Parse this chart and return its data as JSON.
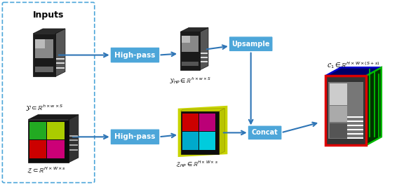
{
  "bg_color": "#ffffff",
  "box_color": "#4da6d9",
  "box_text_color": "#ffffff",
  "arrow_color": "#2e75b6",
  "dashed_box_color": "#4da6d9",
  "title": "Inputs",
  "label_y": "$\\mathcal{Y} \\subset \\mathbb{R}^{h\\times w\\times S}$",
  "label_z": "$\\mathcal{Z} \\subset \\mathbb{R}^{H\\times W\\times s}$",
  "label_yhp": "$\\mathcal{Y}_{HP} \\in \\mathbb{R}^{h\\times w\\times S}$",
  "label_zhp": "$\\mathcal{Z}_{HP} \\in \\mathbb{R}^{H\\times W\\times s}$",
  "label_c": "$\\mathcal{C}_1 \\in \\mathbb{R}^{H\\times W\\times (S+s)}$",
  "box1_label": "High-pass",
  "box2_label": "Upsample",
  "box3_label": "High-pass",
  "box4_label": "Concat"
}
